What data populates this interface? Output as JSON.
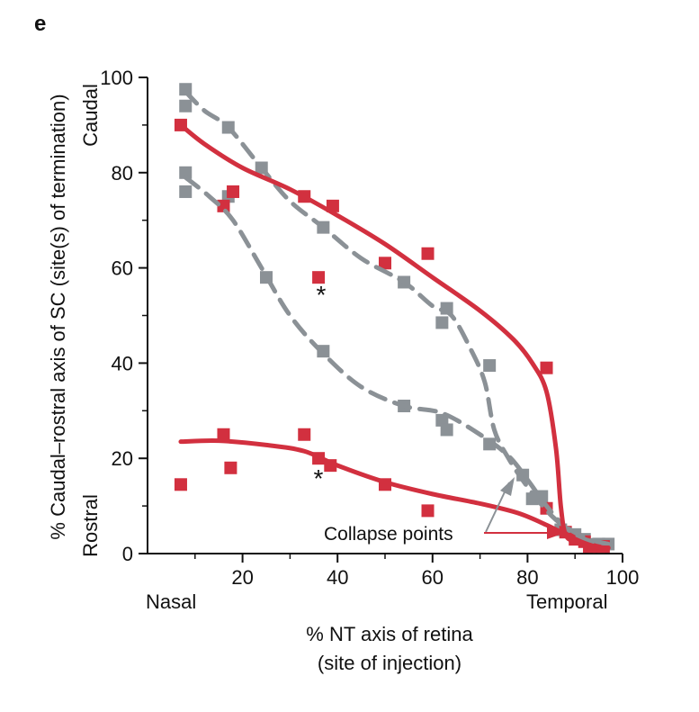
{
  "panel_label": "e",
  "chart_data": {
    "type": "scatter",
    "xlabel_line1": "% NT axis of retina",
    "xlabel_line2": "(site of injection)",
    "ylabel": "% Caudal–rostral axis of SC (site(s) of termination)",
    "xlim": [
      0,
      100
    ],
    "ylim": [
      0,
      100
    ],
    "x_ticks": [
      20,
      40,
      60,
      80,
      100
    ],
    "y_ticks": [
      0,
      20,
      40,
      60,
      80,
      100
    ],
    "x_end_labels": {
      "left": "Nasal",
      "right": "Temporal"
    },
    "y_end_labels": {
      "top": "Caudal",
      "bottom": "Rostral"
    },
    "annotation": "Collapse points",
    "asterisk": "*",
    "colors": {
      "red": "#d2303f",
      "grey": "#8b9196"
    },
    "series": [
      {
        "color": "red",
        "kind": "points",
        "points": [
          [
            7,
            90
          ],
          [
            16,
            73
          ],
          [
            18,
            76
          ],
          [
            33,
            75
          ],
          [
            36,
            58
          ],
          [
            39,
            73
          ],
          [
            50,
            61
          ],
          [
            59,
            63
          ],
          [
            84,
            39
          ],
          [
            7,
            14.5
          ],
          [
            16,
            25
          ],
          [
            17.5,
            18
          ],
          [
            33,
            25
          ],
          [
            36,
            20
          ],
          [
            38.5,
            18.5
          ],
          [
            50,
            14.5
          ],
          [
            59,
            9
          ],
          [
            84,
            9.5
          ],
          [
            88,
            4.5
          ],
          [
            90,
            3
          ],
          [
            92,
            2.5
          ],
          [
            93,
            1.5
          ],
          [
            94,
            1.5
          ],
          [
            95,
            1.5
          ],
          [
            96,
            1.5
          ]
        ]
      },
      {
        "color": "grey",
        "kind": "points",
        "points": [
          [
            8,
            97.5
          ],
          [
            8,
            94
          ],
          [
            8,
            80
          ],
          [
            8,
            76
          ],
          [
            17,
            89.5
          ],
          [
            17,
            75
          ],
          [
            24,
            81
          ],
          [
            25,
            58
          ],
          [
            37,
            68.5
          ],
          [
            37,
            42.5
          ],
          [
            54,
            57
          ],
          [
            54,
            31
          ],
          [
            62,
            48.5
          ],
          [
            62,
            28
          ],
          [
            63,
            51.5
          ],
          [
            63,
            26
          ],
          [
            72,
            39.5
          ],
          [
            72,
            23
          ],
          [
            79,
            16.5
          ],
          [
            81,
            11.5
          ],
          [
            83,
            12
          ],
          [
            87,
            5
          ],
          [
            90,
            4
          ],
          [
            92,
            3
          ],
          [
            95,
            2
          ],
          [
            97,
            2
          ]
        ]
      },
      {
        "color": "red",
        "kind": "curve",
        "style": "solid",
        "points": [
          [
            7,
            90
          ],
          [
            12,
            86
          ],
          [
            20,
            81
          ],
          [
            30,
            76.5
          ],
          [
            40,
            71
          ],
          [
            50,
            65
          ],
          [
            60,
            58
          ],
          [
            70,
            51
          ],
          [
            77,
            45
          ],
          [
            81,
            40
          ],
          [
            84,
            34
          ],
          [
            86,
            22
          ],
          [
            87,
            10
          ],
          [
            88,
            4
          ],
          [
            90,
            2.5
          ],
          [
            93,
            1.5
          ],
          [
            97,
            1.2
          ]
        ]
      },
      {
        "color": "red",
        "kind": "curve",
        "style": "solid",
        "points": [
          [
            7,
            23.5
          ],
          [
            15,
            23.7
          ],
          [
            25,
            22.8
          ],
          [
            33,
            21.5
          ],
          [
            40,
            18.5
          ],
          [
            50,
            15
          ],
          [
            60,
            12.5
          ],
          [
            70,
            10.5
          ],
          [
            78,
            8.5
          ],
          [
            84,
            6
          ],
          [
            88,
            4
          ],
          [
            92,
            2.2
          ],
          [
            95,
            1.3
          ],
          [
            97,
            1.2
          ]
        ]
      },
      {
        "color": "grey",
        "kind": "curve",
        "style": "dashed",
        "points": [
          [
            8,
            97
          ],
          [
            12,
            93
          ],
          [
            17,
            89.5
          ],
          [
            24,
            81
          ],
          [
            30,
            74
          ],
          [
            37,
            68.5
          ],
          [
            45,
            62
          ],
          [
            54,
            57
          ],
          [
            60,
            52
          ],
          [
            64,
            50
          ],
          [
            68,
            43
          ],
          [
            71,
            36
          ],
          [
            73,
            26
          ],
          [
            76,
            20
          ],
          [
            80,
            14
          ],
          [
            85,
            8
          ],
          [
            89,
            5
          ],
          [
            93,
            3
          ],
          [
            97,
            2
          ]
        ]
      },
      {
        "color": "grey",
        "kind": "curve",
        "style": "dashed",
        "points": [
          [
            8,
            79
          ],
          [
            13,
            75
          ],
          [
            18,
            70
          ],
          [
            24,
            60
          ],
          [
            30,
            50
          ],
          [
            37,
            42
          ],
          [
            45,
            35
          ],
          [
            54,
            31
          ],
          [
            62,
            29.5
          ],
          [
            70,
            25
          ],
          [
            76,
            20.5
          ],
          [
            80,
            15.5
          ],
          [
            84,
            10
          ],
          [
            88,
            5.5
          ],
          [
            92,
            3
          ],
          [
            97,
            2
          ]
        ]
      }
    ]
  }
}
